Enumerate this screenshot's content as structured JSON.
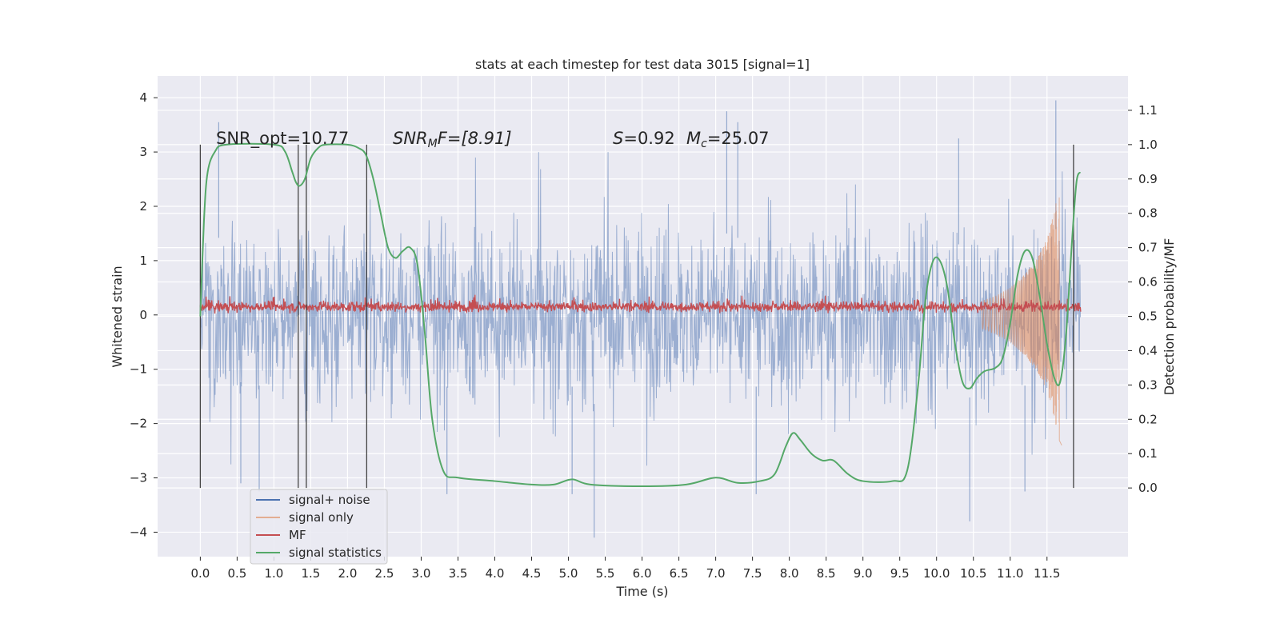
{
  "chart_data": {
    "type": "line",
    "title": "stats at each timestep for test data 3015 [signal=1]",
    "xlabel": "Time (s)",
    "ylabel_left": "Whitened strain",
    "ylabel_right": "Detection probability/MF",
    "xlim": [
      -0.58,
      12.6
    ],
    "ylim_left": [
      -4.45,
      4.4
    ],
    "ylim_right": [
      -0.2,
      1.2
    ],
    "x_ticks": [
      "0.0",
      "0.5",
      "1.0",
      "1.5",
      "2.0",
      "2.5",
      "3.0",
      "3.5",
      "4.0",
      "4.5",
      "5.0",
      "5.5",
      "6.0",
      "6.5",
      "7.0",
      "7.5",
      "8.0",
      "8.5",
      "9.0",
      "9.5",
      "10.0",
      "10.5",
      "11.0",
      "11.5"
    ],
    "y_ticks_left": [
      "−4",
      "−3",
      "−2",
      "−1",
      "0",
      "1",
      "2",
      "3",
      "4"
    ],
    "y_ticks_right": [
      "0.0",
      "0.1",
      "0.2",
      "0.3",
      "0.4",
      "0.5",
      "0.6",
      "0.7",
      "0.8",
      "0.9",
      "1.0",
      "1.1"
    ],
    "grid": true,
    "legend_placement": "lower-left",
    "annotations": {
      "snr_opt": "SNR_opt=10.77",
      "snr_mf_sym": "SNR",
      "snr_mf_sub": "M",
      "snr_mf_rest": "F=[8.91]",
      "s_sym": "S",
      "s_rest": "=0.92",
      "mc_sym": "M",
      "mc_sub": "c",
      "mc_rest": "=25.07"
    },
    "vertical_markers": [
      0.0,
      1.33,
      1.44,
      2.26,
      11.86
    ],
    "series": [
      {
        "name": "signal+ noise",
        "color": "#4c72b0",
        "axis": "left",
        "style": "noise",
        "envelope": {
          "x_start": 0.0,
          "x_end": 11.96,
          "typical_amplitude": 1.8,
          "extreme_peaks": [
            [
              0.25,
              3.55
            ],
            [
              0.55,
              -3.1
            ],
            [
              0.8,
              -3.25
            ],
            [
              3.35,
              -3.3
            ],
            [
              5.05,
              -3.3
            ],
            [
              5.35,
              -4.1
            ],
            [
              7.15,
              3.75
            ],
            [
              7.3,
              3.55
            ],
            [
              7.55,
              -3.3
            ],
            [
              10.45,
              -3.8
            ],
            [
              10.3,
              3.25
            ],
            [
              11.62,
              3.95
            ],
            [
              11.2,
              -3.25
            ]
          ]
        }
      },
      {
        "name": "signal only",
        "color": "#dd8452",
        "axis": "left",
        "points": [
          [
            10.6,
            0.25
          ],
          [
            10.8,
            0.35
          ],
          [
            11.0,
            0.5
          ],
          [
            11.2,
            0.75
          ],
          [
            11.35,
            1.0
          ],
          [
            11.5,
            1.4
          ],
          [
            11.6,
            1.9
          ],
          [
            11.67,
            2.4
          ],
          [
            11.7,
            -2.4
          ]
        ]
      },
      {
        "name": "MF",
        "color": "#c44e52",
        "axis": "left",
        "style": "band",
        "band": {
          "x_start": 0.0,
          "x_end": 11.96,
          "center": 0.15,
          "half_width": 0.14
        }
      },
      {
        "name": "signal statistics",
        "color": "#55a868",
        "axis": "right",
        "points": [
          [
            0.0,
            0.5
          ],
          [
            0.05,
            0.78
          ],
          [
            0.1,
            0.92
          ],
          [
            0.2,
            0.98
          ],
          [
            0.35,
            1.0
          ],
          [
            1.0,
            1.0
          ],
          [
            1.15,
            0.98
          ],
          [
            1.25,
            0.92
          ],
          [
            1.3,
            0.89
          ],
          [
            1.35,
            0.88
          ],
          [
            1.42,
            0.9
          ],
          [
            1.5,
            0.96
          ],
          [
            1.6,
            0.99
          ],
          [
            1.7,
            1.0
          ],
          [
            2.0,
            1.0
          ],
          [
            2.15,
            0.99
          ],
          [
            2.25,
            0.97
          ],
          [
            2.35,
            0.9
          ],
          [
            2.45,
            0.8
          ],
          [
            2.55,
            0.7
          ],
          [
            2.65,
            0.67
          ],
          [
            2.75,
            0.69
          ],
          [
            2.85,
            0.7
          ],
          [
            2.95,
            0.65
          ],
          [
            3.05,
            0.45
          ],
          [
            3.15,
            0.2
          ],
          [
            3.3,
            0.05
          ],
          [
            3.5,
            0.03
          ],
          [
            4.0,
            0.02
          ],
          [
            4.5,
            0.01
          ],
          [
            4.8,
            0.01
          ],
          [
            5.05,
            0.025
          ],
          [
            5.3,
            0.01
          ],
          [
            6.0,
            0.005
          ],
          [
            6.6,
            0.01
          ],
          [
            7.0,
            0.03
          ],
          [
            7.3,
            0.015
          ],
          [
            7.6,
            0.02
          ],
          [
            7.8,
            0.04
          ],
          [
            7.95,
            0.12
          ],
          [
            8.05,
            0.16
          ],
          [
            8.15,
            0.14
          ],
          [
            8.3,
            0.1
          ],
          [
            8.45,
            0.08
          ],
          [
            8.6,
            0.08
          ],
          [
            8.8,
            0.04
          ],
          [
            9.0,
            0.02
          ],
          [
            9.4,
            0.02
          ],
          [
            9.6,
            0.05
          ],
          [
            9.75,
            0.3
          ],
          [
            9.85,
            0.55
          ],
          [
            9.95,
            0.66
          ],
          [
            10.05,
            0.66
          ],
          [
            10.15,
            0.58
          ],
          [
            10.25,
            0.42
          ],
          [
            10.35,
            0.31
          ],
          [
            10.45,
            0.29
          ],
          [
            10.55,
            0.32
          ],
          [
            10.65,
            0.34
          ],
          [
            10.8,
            0.35
          ],
          [
            10.9,
            0.38
          ],
          [
            11.0,
            0.48
          ],
          [
            11.1,
            0.62
          ],
          [
            11.2,
            0.69
          ],
          [
            11.3,
            0.67
          ],
          [
            11.4,
            0.56
          ],
          [
            11.5,
            0.42
          ],
          [
            11.6,
            0.32
          ],
          [
            11.68,
            0.31
          ],
          [
            11.76,
            0.45
          ],
          [
            11.84,
            0.72
          ],
          [
            11.9,
            0.89
          ],
          [
            11.95,
            0.92
          ]
        ]
      }
    ]
  }
}
